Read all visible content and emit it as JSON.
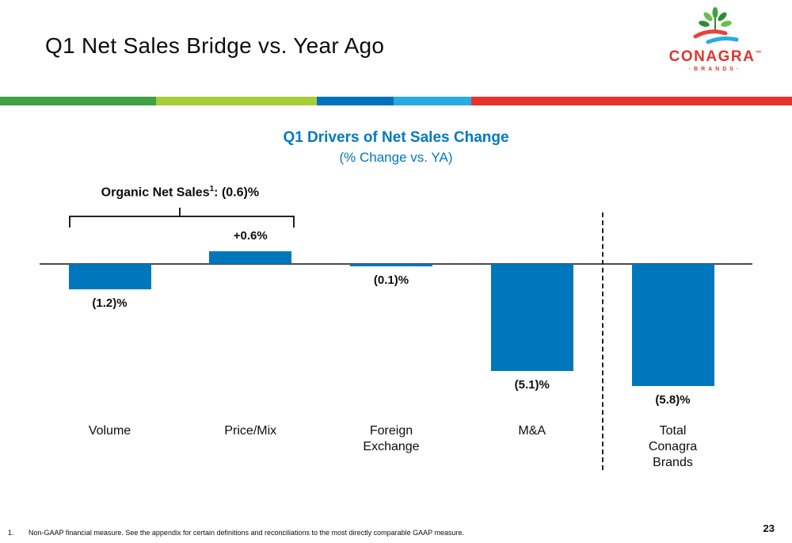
{
  "slide": {
    "title": "Q1 Net Sales Bridge vs. Year Ago",
    "page_number": "23",
    "footnote_number": "1.",
    "footnote_text": "Non-GAAP financial measure. See the appendix for certain definitions and reconciliations to the most directly comparable GAAP measure."
  },
  "logo": {
    "brand": "CONAGRA",
    "trademark": "™",
    "sub": "·BRANDS·"
  },
  "colors": {
    "accent_blue": "#0079c2",
    "bar_blue": "#0077bd",
    "logo_red": "#d8382e"
  },
  "stripe_colors": [
    "#3fa142",
    "#a6ce39",
    "#0072bc",
    "#29abe2",
    "#e8332a"
  ],
  "chart_data": {
    "type": "bar",
    "title": "Q1 Drivers of Net Sales Change",
    "subtitle": "(% Change vs. YA)",
    "categories": [
      "Volume",
      "Price/Mix",
      "Foreign\nExchange",
      "M&A",
      "Total\nConagra\nBrands"
    ],
    "values": [
      -1.2,
      0.6,
      -0.1,
      -5.1,
      -5.8
    ],
    "labels": [
      "(1.2)%",
      "+0.6%",
      "(0.1)%",
      "(5.1)%",
      "(5.8)%"
    ],
    "bar_color": "#0077bd",
    "ylim": [
      -6.5,
      1.5
    ],
    "grid": false,
    "annotation": {
      "text": "Organic Net Sales",
      "sup": "1",
      "value": ": (0.6)%"
    },
    "dashed_separator_before": "Total Conagra Brands"
  }
}
